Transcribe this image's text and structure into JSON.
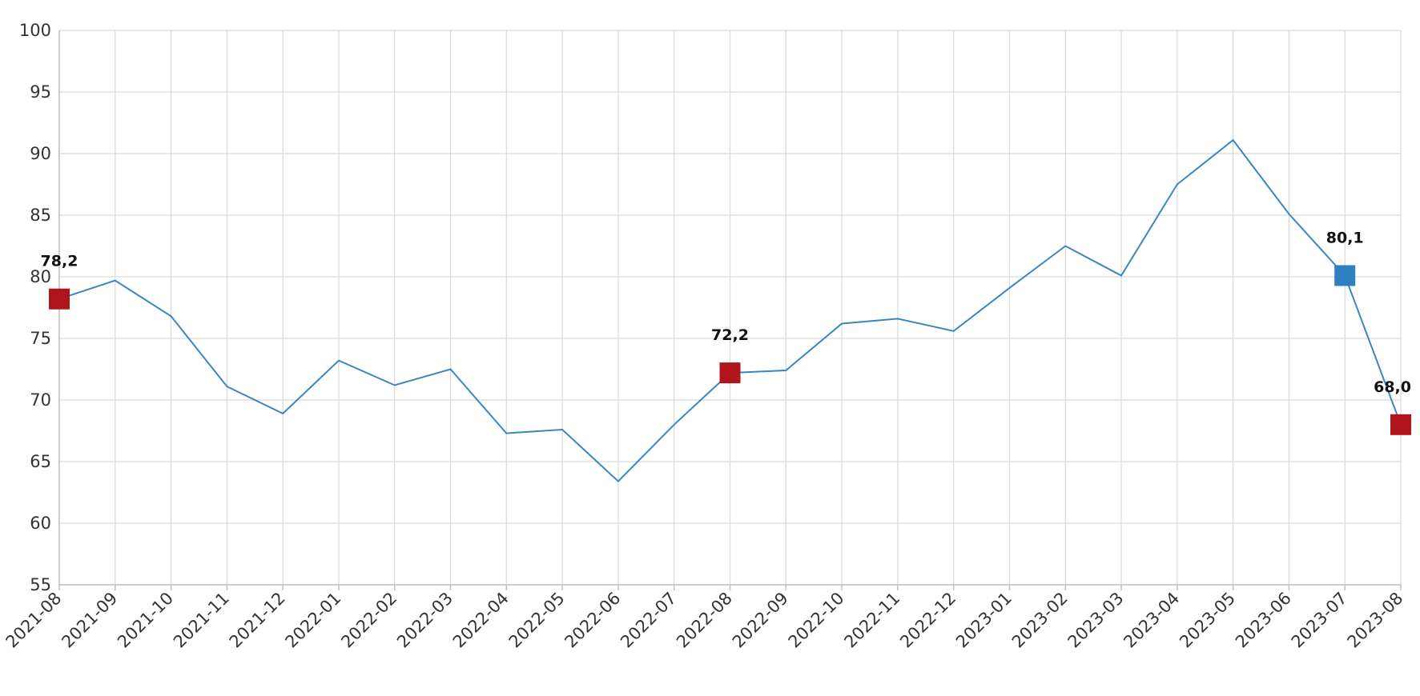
{
  "chart_data": {
    "type": "line",
    "title": "",
    "xlabel": "",
    "ylabel": "",
    "ylim": [
      55,
      100
    ],
    "yticks": [
      55,
      60,
      65,
      70,
      75,
      80,
      85,
      90,
      95,
      100
    ],
    "grid": true,
    "legend": "none",
    "categories": [
      "2021-08",
      "2021-09",
      "2021-10",
      "2021-11",
      "2021-12",
      "2022-01",
      "2022-02",
      "2022-03",
      "2022-04",
      "2022-05",
      "2022-06",
      "2022-07",
      "2022-08",
      "2022-09",
      "2022-10",
      "2022-11",
      "2022-12",
      "2023-01",
      "2023-02",
      "2023-03",
      "2023-04",
      "2023-05",
      "2023-06",
      "2023-07",
      "2023-08"
    ],
    "series": [
      {
        "color": "#3a87c0",
        "values": [
          78.2,
          79.7,
          76.8,
          71.1,
          68.9,
          73.2,
          71.2,
          72.5,
          67.3,
          67.6,
          63.4,
          68.0,
          72.2,
          72.4,
          76.2,
          76.6,
          75.6,
          79.1,
          82.5,
          80.1,
          87.5,
          91.1,
          85.1,
          80.1,
          68.0
        ]
      }
    ],
    "highlighted_points": [
      {
        "category": "2021-08",
        "value": 78.2,
        "label": "78,2",
        "color": "#b0151c"
      },
      {
        "category": "2022-08",
        "value": 72.2,
        "label": "72,2",
        "color": "#b0151c"
      },
      {
        "category": "2023-07",
        "value": 80.1,
        "label": "80,1",
        "color": "#2f7fc1"
      },
      {
        "category": "2023-08",
        "value": 68.0,
        "label": "68,0",
        "color": "#b0151c"
      }
    ]
  }
}
